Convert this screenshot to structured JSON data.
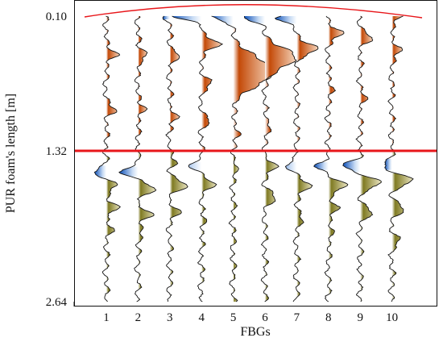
{
  "chart_data": {
    "type": "line",
    "title": "",
    "xlabel": "FBGs",
    "ylabel": "PUR foam's length [m]",
    "categories": [
      "1",
      "2",
      "3",
      "4",
      "5",
      "6",
      "7",
      "8",
      "9",
      "10"
    ],
    "y_ticks": [
      "0.10",
      "1.32",
      "2.64"
    ],
    "ylim": [
      0.1,
      2.64
    ],
    "y_inverted": true,
    "reference_line": {
      "y": 1.32,
      "color": "#e8161a"
    },
    "arrival_curve": {
      "color": "#e8161a"
    },
    "colors": {
      "positive_upper": "#c95a14",
      "positive_lower": "#8f8a2e",
      "negative": "#1f5fc4",
      "trace": "#111111"
    },
    "series": [
      {
        "events": [
          [
            0.45,
            0.9,
            0.05
          ],
          [
            0.95,
            0.7,
            0.05
          ],
          [
            1.5,
            -1.0,
            0.05
          ],
          [
            1.62,
            0.8,
            0.05
          ],
          [
            1.82,
            1.0,
            0.05
          ],
          [
            2.02,
            0.4,
            0.06
          ]
        ]
      },
      {
        "events": [
          [
            0.45,
            0.8,
            0.05
          ],
          [
            0.95,
            0.6,
            0.05
          ],
          [
            1.5,
            -1.2,
            0.05
          ],
          [
            1.65,
            1.2,
            0.06
          ],
          [
            1.87,
            1.1,
            0.05
          ],
          [
            2.05,
            0.4,
            0.06
          ]
        ]
      },
      {
        "events": [
          [
            0.1,
            -0.3,
            0.05
          ],
          [
            0.45,
            0.8,
            0.05
          ],
          [
            1.0,
            0.6,
            0.05
          ],
          [
            1.42,
            0.5,
            0.05
          ],
          [
            1.62,
            1.2,
            0.06
          ],
          [
            1.85,
            0.7,
            0.05
          ]
        ]
      },
      {
        "events": [
          [
            0.1,
            -2.0,
            0.05
          ],
          [
            0.35,
            1.5,
            0.06
          ],
          [
            0.7,
            0.7,
            0.06
          ],
          [
            1.05,
            0.6,
            0.05
          ],
          [
            1.45,
            -0.8,
            0.05
          ],
          [
            1.62,
            0.9,
            0.06
          ],
          [
            1.95,
            0.3,
            0.06
          ]
        ]
      },
      {
        "events": [
          [
            0.1,
            -1.7,
            0.06
          ],
          [
            0.6,
            3.0,
            0.18
          ],
          [
            1.15,
            0.5,
            0.06
          ],
          [
            1.45,
            0.3,
            0.06
          ]
        ]
      },
      {
        "events": [
          [
            0.1,
            -1.8,
            0.06
          ],
          [
            0.48,
            2.4,
            0.12
          ],
          [
            1.1,
            0.5,
            0.06
          ],
          [
            1.45,
            0.8,
            0.06
          ],
          [
            1.72,
            0.8,
            0.06
          ]
        ]
      },
      {
        "events": [
          [
            0.12,
            -1.5,
            0.05
          ],
          [
            0.4,
            1.5,
            0.07
          ],
          [
            1.45,
            -0.9,
            0.05
          ],
          [
            1.62,
            1.1,
            0.06
          ],
          [
            1.9,
            0.5,
            0.06
          ]
        ]
      },
      {
        "events": [
          [
            0.25,
            1.0,
            0.06
          ],
          [
            0.75,
            0.4,
            0.06
          ],
          [
            1.45,
            -1.0,
            0.05
          ],
          [
            1.62,
            1.3,
            0.06
          ],
          [
            1.82,
            0.8,
            0.06
          ],
          [
            2.05,
            0.4,
            0.06
          ]
        ]
      },
      {
        "events": [
          [
            0.3,
            0.8,
            0.06
          ],
          [
            0.85,
            0.4,
            0.06
          ],
          [
            1.45,
            -1.3,
            0.05
          ],
          [
            1.6,
            1.5,
            0.06
          ],
          [
            1.85,
            0.9,
            0.06
          ]
        ]
      },
      {
        "events": [
          [
            0.1,
            0.8,
            0.05
          ],
          [
            0.4,
            0.7,
            0.06
          ],
          [
            1.45,
            -0.6,
            0.05
          ],
          [
            1.58,
            1.5,
            0.06
          ],
          [
            1.82,
            0.9,
            0.06
          ],
          [
            2.1,
            0.5,
            0.06
          ]
        ]
      }
    ]
  }
}
